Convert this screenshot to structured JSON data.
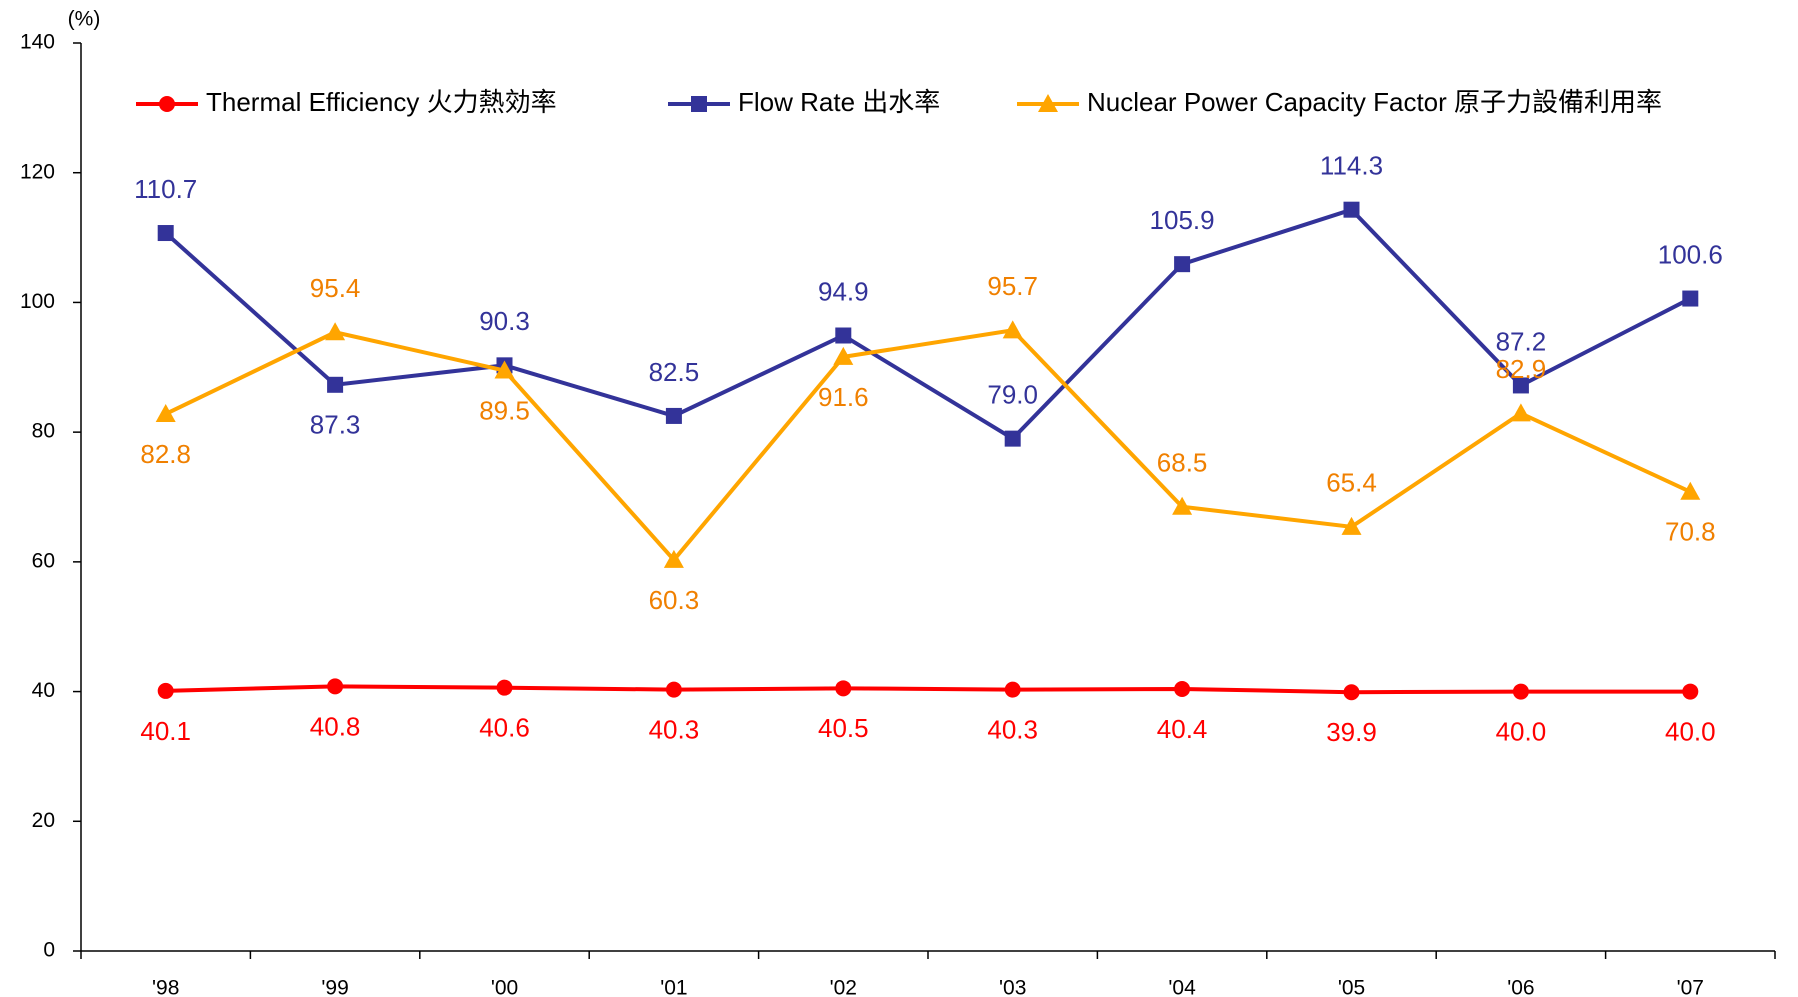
{
  "chart_data": {
    "type": "line",
    "y_unit_label": "(%)",
    "categories": [
      "'98",
      "'99",
      "'00",
      "'01",
      "'02",
      "'03",
      "'04",
      "'05",
      "'06",
      "'07"
    ],
    "series": [
      {
        "name": "Thermal Efficiency  火力熱効率",
        "color": "#ff0000",
        "marker": "circle",
        "values": [
          40.1,
          40.8,
          40.6,
          40.3,
          40.5,
          40.3,
          40.4,
          39.9,
          40.0,
          40.0
        ],
        "value_labels": [
          "40.1",
          "40.8",
          "40.6",
          "40.3",
          "40.5",
          "40.3",
          "40.4",
          "39.9",
          "40.0",
          "40.0"
        ]
      },
      {
        "name": "Flow Rate 出水率",
        "color": "#333399",
        "marker": "square",
        "values": [
          110.7,
          87.3,
          90.3,
          82.5,
          94.9,
          79.0,
          105.9,
          114.3,
          87.2,
          100.6
        ],
        "value_labels": [
          "110.7",
          "87.3",
          "90.3",
          "82.5",
          "94.9",
          "79.0",
          "105.9",
          "114.3",
          "87.2",
          "100.6"
        ]
      },
      {
        "name": "Nuclear Power Capacity Factor  原子力設備利用率",
        "color": "#ffa500",
        "marker": "triangle",
        "values": [
          82.8,
          95.4,
          89.5,
          60.3,
          91.6,
          95.7,
          68.5,
          65.4,
          82.9,
          70.8
        ],
        "value_labels": [
          "82.8",
          "95.4",
          "89.5",
          "60.3",
          "91.6",
          "95.7",
          "68.5",
          "65.4",
          "82.9",
          "70.8"
        ]
      }
    ],
    "ylim": [
      0,
      140
    ],
    "yticks": [
      0,
      20,
      40,
      60,
      80,
      100,
      120,
      140
    ],
    "grid": false,
    "legend": "top"
  }
}
